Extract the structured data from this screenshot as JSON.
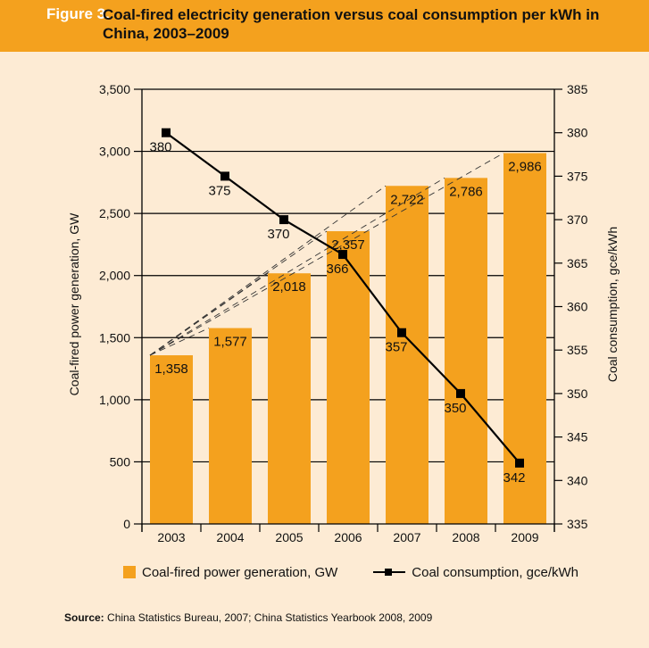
{
  "header": {
    "figure_label": "Figure 3.",
    "title": "Coal-fired electricity generation versus coal consumption per kWh in China, 2003–2009"
  },
  "legend": {
    "bar_label": "Coal-fired power generation, GW",
    "line_label": "Coal consumption, gce/kWh"
  },
  "source": {
    "label": "Source:",
    "text": "China Statistics Bureau, 2007; China Statistics Yearbook 2008, 2009"
  },
  "colors": {
    "bar": "#f4a11e",
    "background": "#fdebd4",
    "header": "#f4a11e",
    "line": "#000000"
  },
  "chart_data": {
    "type": "bar",
    "title": "Coal-fired electricity generation versus coal consumption per kWh in China, 2003–2009",
    "categories": [
      "2003",
      "2004",
      "2005",
      "2006",
      "2007",
      "2008",
      "2009"
    ],
    "series": [
      {
        "name": "Coal-fired power generation, GW",
        "type": "bar",
        "axis": "left",
        "values": [
          1358,
          1577,
          2018,
          2357,
          2722,
          2786,
          2986
        ],
        "labels": [
          "1,358",
          "1,577",
          "2,018",
          "2,357",
          "2,722",
          "2,786",
          "2,986"
        ]
      },
      {
        "name": "Coal consumption, gce/kWh",
        "type": "line",
        "axis": "right",
        "values": [
          380,
          375,
          370,
          366,
          357,
          350,
          342
        ],
        "labels": [
          "380",
          "375",
          "370",
          "366",
          "357",
          "350",
          "342"
        ]
      }
    ],
    "trend_lines": {
      "style": "dashed",
      "from": "2003",
      "to": [
        "2004",
        "2005",
        "2006",
        "2007",
        "2008",
        "2009"
      ]
    },
    "y_left": {
      "label": "Coal-fired power generation, GW",
      "ylim": [
        0,
        3500
      ],
      "ticks": [
        0,
        500,
        1000,
        1500,
        2000,
        2500,
        3000,
        3500
      ],
      "tick_labels": [
        "0",
        "500",
        "1,000",
        "1,500",
        "2,000",
        "2,500",
        "3,000",
        "3,500"
      ]
    },
    "y_right": {
      "label": "Coal consumption, gce/kWh",
      "ylim": [
        335,
        385
      ],
      "ticks": [
        335,
        340,
        345,
        350,
        355,
        360,
        365,
        370,
        375,
        380,
        385
      ],
      "tick_labels": [
        "335",
        "340",
        "345",
        "350",
        "355",
        "360",
        "365",
        "370",
        "375",
        "380",
        "385"
      ]
    },
    "xlabel": "",
    "grid": true,
    "legend_position": "bottom"
  }
}
